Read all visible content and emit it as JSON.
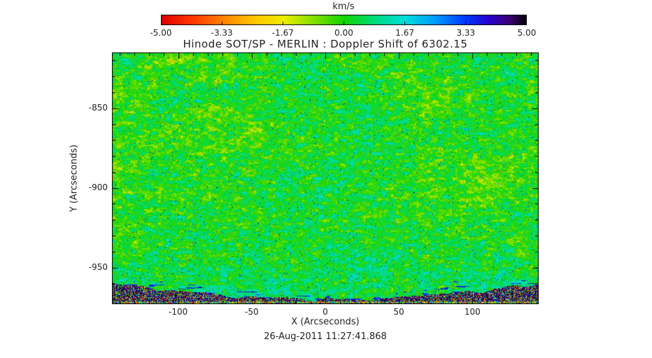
{
  "chart_data": {
    "type": "heatmap",
    "title": "Hinode SOT/SP - MERLIN : Doppler Shift of 6302.15",
    "xlabel": "X (Arcseconds)",
    "ylabel": "Y (Arcseconds)",
    "timestamp": "26-Aug-2011 11:27:41.868",
    "colorbar": {
      "label": "km/s",
      "min": -5,
      "max": 5,
      "tick_values": [
        -5.0,
        -3.33,
        -1.67,
        0.0,
        1.67,
        3.33,
        5.0
      ],
      "tick_labels": [
        "-5.00",
        "-3.33",
        "-1.67",
        "0.00",
        "1.67",
        "3.33",
        "5.00"
      ],
      "stops": [
        {
          "t": 0.0,
          "c": "#dc0000"
        },
        {
          "t": 0.08,
          "c": "#ff3400"
        },
        {
          "t": 0.167,
          "c": "#ff8000"
        },
        {
          "t": 0.25,
          "c": "#ffc400"
        },
        {
          "t": 0.333,
          "c": "#eeee00"
        },
        {
          "t": 0.42,
          "c": "#7fe000"
        },
        {
          "t": 0.5,
          "c": "#10d400"
        },
        {
          "t": 0.583,
          "c": "#00dc7c"
        },
        {
          "t": 0.667,
          "c": "#00dcdc"
        },
        {
          "t": 0.75,
          "c": "#009cff"
        },
        {
          "t": 0.833,
          "c": "#0038ff"
        },
        {
          "t": 0.9,
          "c": "#2800c8"
        },
        {
          "t": 0.955,
          "c": "#3c0070"
        },
        {
          "t": 1.0,
          "c": "#000000"
        }
      ]
    },
    "x_range": [
      -145,
      145
    ],
    "y_range": [
      -973,
      -815
    ],
    "x_tick_values": [
      -100,
      -50,
      0,
      50,
      100
    ],
    "x_tick_labels": [
      "-100",
      "-50",
      "0",
      "50",
      "100"
    ],
    "y_tick_values": [
      -850,
      -900,
      -950
    ],
    "y_tick_labels": [
      "-850",
      "-900",
      "-950"
    ],
    "minor_tick_step": 10,
    "field_summary": {
      "mean_velocity_km_s": 0,
      "typical_range_km_s": [
        -2,
        2
      ],
      "pattern": "solar granulation Doppler-velocity noise: predominantly green (~0 km/s) speckled with cyan/yellow granules, sparse orange (blueshift) and dark blue/black (redshift) points",
      "limb": "curved solar limb near y = -960 arcsec; dark speckled off-limb noise band across the bottom of the map, thicker at the left and right edges"
    }
  }
}
